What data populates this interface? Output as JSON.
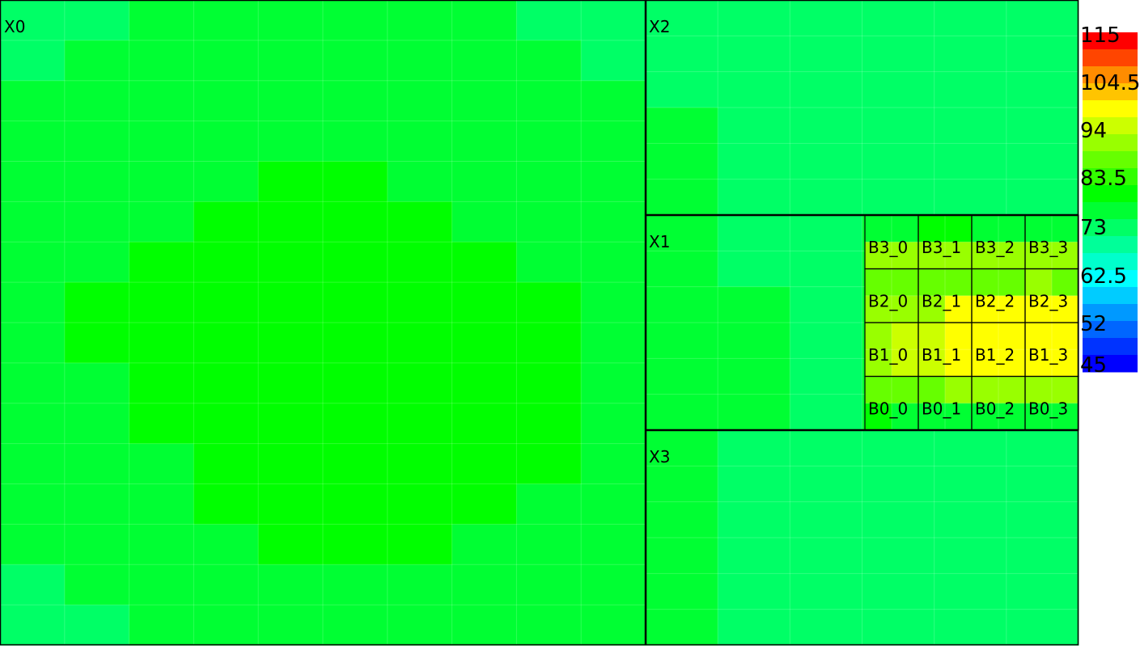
{
  "chart_data": {
    "type": "heatmap",
    "title": "",
    "xlabel": "",
    "ylabel": "",
    "colorbar": {
      "min": 45,
      "max": 115,
      "ticks": [
        "115",
        "104.5",
        "94",
        "83.5",
        "73",
        "62.5",
        "52",
        "45"
      ],
      "bands": [
        "#ff0000",
        "#ff4500",
        "#ff8c00",
        "#ffc400",
        "#ffff00",
        "#ccff00",
        "#99ff00",
        "#66ff00",
        "#33ff00",
        "#00ff00",
        "#00ff33",
        "#00ff66",
        "#00ff99",
        "#00ffcc",
        "#00ffff",
        "#00ccff",
        "#0099ff",
        "#0066ff",
        "#0033ff",
        "#0000ff"
      ]
    },
    "blocks": [
      {
        "name": "X0",
        "values": [
          [
            75,
            76,
            78,
            78,
            78,
            78,
            78,
            78,
            76,
            76
          ],
          [
            74,
            78,
            78,
            78,
            78,
            78,
            78,
            78,
            78,
            76
          ],
          [
            78,
            78,
            78,
            78,
            78,
            78,
            78,
            78,
            78,
            78
          ],
          [
            78,
            78,
            78,
            78,
            78,
            78,
            78,
            78,
            78,
            78
          ],
          [
            78,
            78,
            78,
            78,
            81,
            81,
            78,
            78,
            78,
            78
          ],
          [
            78,
            78,
            78,
            81,
            81,
            81,
            81,
            78,
            78,
            78
          ],
          [
            78,
            78,
            81,
            81,
            81,
            81,
            81,
            81,
            78,
            78
          ],
          [
            78,
            81,
            81,
            81,
            81,
            81,
            81,
            81,
            81,
            78
          ],
          [
            78,
            81,
            81,
            81,
            81,
            81,
            81,
            81,
            81,
            78
          ],
          [
            78,
            78,
            81,
            81,
            81,
            81,
            81,
            81,
            81,
            78
          ],
          [
            78,
            78,
            81,
            81,
            81,
            81,
            81,
            81,
            81,
            78
          ],
          [
            78,
            78,
            78,
            81,
            81,
            81,
            81,
            81,
            81,
            78
          ],
          [
            78,
            78,
            78,
            81,
            81,
            81,
            81,
            81,
            78,
            78
          ],
          [
            78,
            78,
            78,
            78,
            81,
            81,
            81,
            78,
            78,
            78
          ],
          [
            75,
            78,
            78,
            78,
            78,
            78,
            78,
            78,
            78,
            78
          ],
          [
            75,
            75,
            78,
            78,
            78,
            78,
            78,
            78,
            78,
            78
          ]
        ]
      },
      {
        "name": "X2",
        "values": [
          [
            76,
            76,
            76,
            74,
            74,
            74
          ],
          [
            76,
            76,
            76,
            74,
            74,
            74
          ],
          [
            76,
            76,
            76,
            76,
            74,
            74
          ],
          [
            78,
            76,
            76,
            76,
            76,
            74
          ],
          [
            78,
            76,
            76,
            76,
            76,
            76
          ],
          [
            78,
            76,
            76,
            76,
            76,
            76
          ]
        ]
      },
      {
        "name": "X1",
        "values": [
          [
            78,
            76,
            76,
            78,
            78,
            78
          ],
          [
            78,
            76,
            76,
            78,
            78,
            78
          ],
          [
            78,
            78,
            76,
            78,
            78,
            78
          ],
          [
            78,
            78,
            76,
            78,
            78,
            78
          ],
          [
            78,
            78,
            76,
            78,
            78,
            78
          ],
          [
            78,
            78,
            76,
            78,
            78,
            78
          ]
        ]
      },
      {
        "name": "X3",
        "values": [
          [
            78,
            76,
            76,
            76,
            76,
            76
          ],
          [
            78,
            76,
            76,
            76,
            76,
            76
          ],
          [
            78,
            76,
            76,
            76,
            76,
            75
          ],
          [
            78,
            76,
            76,
            76,
            76,
            74
          ],
          [
            78,
            76,
            76,
            76,
            74,
            74
          ],
          [
            78,
            76,
            76,
            74,
            74,
            74
          ]
        ]
      }
    ],
    "sub_blocks": {
      "labels": [
        [
          "B3_0",
          "B3_1",
          "B3_2",
          "B3_3"
        ],
        [
          "B2_0",
          "B2_1",
          "B2_2",
          "B2_3"
        ],
        [
          "B1_0",
          "B1_1",
          "B1_2",
          "B1_3"
        ],
        [
          "B0_0",
          "B0_1",
          "B0_2",
          "B0_3"
        ]
      ],
      "values": [
        [
          80,
          80,
          81,
          81,
          80,
          78,
          78,
          78
        ],
        [
          91,
          91,
          91,
          91,
          91,
          91,
          91,
          91
        ],
        [
          89,
          89,
          89,
          89,
          89,
          89,
          91,
          89
        ],
        [
          91,
          91,
          91,
          99,
          99,
          99,
          99,
          99
        ],
        [
          91,
          95,
          95,
          99,
          99,
          99,
          99,
          99
        ],
        [
          91,
          95,
          95,
          99,
          99,
          99,
          99,
          99
        ],
        [
          89,
          89,
          89,
          91,
          91,
          91,
          91,
          91
        ],
        [
          81,
          80,
          80,
          80,
          80,
          80,
          80,
          80
        ]
      ]
    }
  }
}
